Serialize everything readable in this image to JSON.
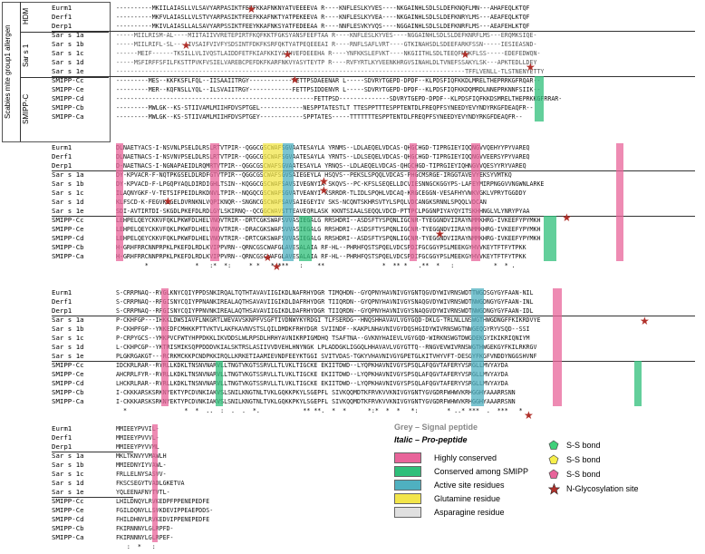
{
  "side_labels": {
    "outer": "Scabies mite group1 allergen",
    "hdm": "HDM",
    "sar": "Sar s 1",
    "smipp": "SMIPP-C"
  },
  "names": [
    "Eurm1",
    "Derf1",
    "Derp1",
    "Sar s 1a",
    "Sar s 1b",
    "Sar s 1c",
    "Sar s 1d",
    "Sar s 1e",
    "SMIPP-Cc",
    "SMIPP-Ce",
    "SMIPP-Cd",
    "SMIPP-Cb",
    "SMIPP-Ca"
  ],
  "blocks": [
    {
      "sequences": [
        "----------MKIILAIASLLVLSAVYARPASIKTFEEFKKAFNKNYATVEEEEVA R----KNFLESLKYVES----NKGAINHLSDLSLDEFKNQFLMN---AHAFEQLKTQF",
        "----------MKFVLAIASLLVLSTVYARPASIKTFEEFKKAFNKTYATPEKEEVA R----KNFLESLKYVEA----NKGAINHLSDLSLDEFKNRYLMS---AEAFEQLKTQF",
        "----------MKIVLAIASLLALSAVYARPSSIKTFEEYKKAFNKSYATFEDEEAA R----NNFLESVKYVQS----NGGAINHLSDLSLDEFKNRFLMS---AEAFEHLKTQF",
        "-----MIILRISM-AL----MIITAIIVVRETEPIRTFKQFKKTFGKSYANSFEEFTAA R----KNFLESLKYVES----NGGAINHLSDLSLDEFKNRFLMS---ERQMKSIQE-",
        "-----MIILRIFL-SL----IVSAIFVIVFYSDSINTFDKFKSRFQKTYATPEQEEEAI R----RNFLSAFLVRT----GTKINAHSDLSDEEFARKFSSN-----IESIEASND-",
        "------MEIF------TKSILLVLIVQSTLAIDDFETFKIAFKKIYATHVEFDEEEHA R----YNFKKSLEFVKT----NKGIITHLSDLTEEQFNQKFLSS-----EDEFEDWQN-",
        "-----MSFIRFFSFILFKSTTPVKFVSIELVAREBCPEFDKFKARFNKVYASYTEYTP R----RVFYRTLKYVEENKHRGVSINAHLDLTVNEFSSAKYLSK---APKTEDLLDEY",
        "-------------------------------------------------------------------------------------------------TFFLVENLL-TLSTNENYETTY",
        "---------MES--KKFKSFLFQL--IISAAIITRGY------------FETTPSDAEENAR L-----SDVRYTGEPD-DPDF--KLPDSFIQFKKDLMRELTHEPRRKGFRQAR--",
        "---------MER--KQFNSLLYQL--ILSVAIITRGY------------FETTPSIDDENVR L-----SDVRYTGEPD-DPDF--KLPDSFIQFKKDQMRDLNNEPRKNNFSIIK--",
        "-------------------------------------------------------FETTPSD--------------SDVRYTGEPD-DPDF--KLPDSFIQFKKDSMRELTHEPRKKGFRRAR-",
        "---------MWLGK--KS-STIIVAMLMIIHFDVSPTGEL------------NESPPTATESTLT TTESPPTTTESPPTENTDLFREQPFSYNEEDYEVYNDYRKGFDEAQFR--",
        "---------MWLGK--KS-STIIVAMLMIIHFDVSPTGEY------------SPPTATES-----TTTTTTTESPPTENTDLFREQPFSYNEEDYEVYNDYRKGFDEAQFR--"
      ],
      "conservation": ""
    },
    {
      "sequences": [
        "DLNAETYACS-I-NSVNLPSELDLRSLRTVTPIR--QGGCGSCWAFSGVAATESAYLA YRNMS--LDLAEQELVDCAS-QHGCHGD-TIPRGIEYIQQNGVVQEHYYPYVAREQ",
        "DLNAETNACS-I-NSVNVPSELDLRSLRTVTPIR--QGGCGSCWAFSGVAATESAYLA YRNTS--LDLSEQELVDCAS-QHGCHGD-TIPRGIEYIQQNGVVEERSYPYVAREQ",
        "D-NAETNACS-I-NGNAPAEIDLRQMRTVTPIR--QGGCGSCWAFSGVAATESAYLA YRNQS--LDLAEQELVDCAS-QHGCHGD-TIPRGIEYIQHNGVVQESYYRYVAREQ",
        "DY-KPVACR-F-NQTPKGSELDLRDFGTVTPIR--QGGCGSCWAFSGVSAIEGEYLA HSQVS--PEKSLSPQQLVDCAS-PHGCMSRGE-IRGGTAVEVYEKSYVMTKQ",
        "DY-KPVACD-F-LPGQPYAQLDIRDIGHLTSIN--KQGGCGSCWAFSAVSIVEGNYIA SKQVS--PC-KFSLSEQELLDCVIESNNGCKGGYPS-LAFEYMIRPNGGVVNGWNLARKE",
        "ILAQNYGKF-V-TETSIFPEIDLRKDNVLTPIR--NQGQCGSCWAFSGVATVEANYI KSRRDR-TLIDLSPQHLVDCAQ-KRGCEGGN-VESAFHYVWKVGKLVPRYTGGDDY",
        "KLFSCD-K-FEGVKLGELDVRNKNLVQPIKNQR--SNGNCGSCWAFSAVSAIEGEYIV SKS-NCQNTSKHRSVTYLSPQLVDCANGKSRNNLSPQQLVDCAN",
        "SDI-AVTIRTDI-SKGDLPKEFDLRDLGYLSKIRNQ--QCGGCWAVSTTEAVEQRLASK KKNTSIAALSEQQLVDCD-PTTPCLPGGNPIYAYQYITSKHHNGLVLYNRYPYAA",
        "LEHPELQEYCKKVFQKLPKWFDLHELVNQVTRIR--DRTCGKSWAFSVVASIEGALG RRSHDRI--ASDSFTYSPQNLIGCNR-TYEGGNDVIIRAYNMMKHRG-IVKEEFYPYMKH",
        "LEHPELQEYCKKVFQKLPKWFDLHELVNQVTRIR--DRACGKSWAFSVVASIEGALG RRSHDRI--ASDSFTYSPQNLIGCNR-TYEGGNDVIIRAYNMMKHRG-IVKEEFYPYMKH",
        "LEHPELQEYCKKVFQKLPKWFDLHELVNQVTRIR--DRTCGKSWAFSVVASIEGALG RRSHDRI--ASDSFTYSPQNLIGCNR-TYEGGNDVIIRAYNMMKHRG-IVKEEFYPYMKH",
        "H-GRHFRRCNNPRPKLPKEFDLRDLKVIPPVRN--QRNCGSCWAFGLAVESALAIA RF-HL--PHRHFQSTSPQELVDCSPDIFGCGGYPSLMEEKGYHVVKEYTFTFYTPKK",
        "H-GRHFRRCNNPRPKLPKEFDLRDLKVIPPVRN--QRNCGSCWAFGLAVESALAIA RF-HL--PHRHFQSTSPQELVDCSPDIFGCGGYPSLMEEKGYHVVKEYTFTFYTPKK"
      ],
      "conservation": "        *             *   :*  *:     * *   *:***   :    **                *  ** *   .**  *   :           *  * ."
    },
    {
      "sequences": [
        "S-CRRPNAQ--RYGLKNYCQIYPPDSNKIRQALTQTHTAVAVIIGIKDLNAFRHYDGR TIMQHDN--GYQPNYHAVNIVGYGNTQGVDYWIVRNSWDTTWGDSGYGYFAAN-NIL",
        "S-CRRPNAQ--RFGISNYCQIYPPNANKIREALAQTHSAVAVIIGIKDLDAFRHYDGR TIIQRDN--GYQPNYHAVNIVGYSNAQGVDYWIVRNSWDTNWGDNGYGYFAAN-INL",
        "S-CRRPNAQ--RFGISNYCQIYPPNVNKIREALAQTHSAVAVIIGIKDLDAFRHYDGR TIIQRDN--GYQPNYHAVNIVGYSNAQGVDYWIVRNSWDTNWGDNGYGYFAAN-IDL",
        "P-CKHFGP---IHKKLDWSIAVFLNKGRTLWEVAVSKNPFVSGFTIVDNWYKYRDGI TLFSERDG--HNQSHHAVAVLVGYGQD-DKLG-TRLNLLNSWGTHWGDNGFFKIKRDVYE",
        "P-CKHPFGP--YNKEDFCMHKKPTTVKTVLAKFKAVNVSTSLQILDMDKFRHYDGR SVIINDF--KAKPLNHAVNIVGYDQSHGIDYWIVRNSWGTNWGEQGYRYVSQD--SSI",
        "P-CRPYGCS--YMKPVCFWTYHPPDKKLIKVDDSLWLRPSDLHRHYAVNIKRPIGMDHQ TSAFTNA--GVKNYHAIEVLVGYGQD-WIRKNSWGTDWGDEKGYIKIKRIQNIYM",
        "L-CKHPCGP--YKTRISMIKSQPPDDDVKIALSKTRSLASIIVVDVEHLHNYNGK LPLADDGKLIGGQLHHAVAVLVGYGTTQ--RNGVEVWIVRNSWGTHWGEKGYFKILRKRGV",
        "PLGKRGAKGT---RCRKMCKKPCNDPKKIRQLLKRKETIAAMIEVNDFEEYKTGGI SVITVDAS-TGKYVHAVNIVGYGPETGLKITVHYVFT-DESGYFKGFVNDDYNGGSHVNF",
        "IDCKRLRAR--RYRLLKDKLTNSNVNARVLLTNGTVKGTSSRVLLTLVKLTIGCKE EKIITDWD--LYQPKHAVNIVGYSPSQLAFQGVTAFERYVSRGLLMVYAYDA",
        "AHCRRLFYR--RYRLLKDKLTNSNVNARVLLTNGTVKGTSSRVLLTLVKLTIGCKE EKIITDWD--LYQPKHAVNIVGYSPSQLAFQGVTAFERYVSRGLLMVYAYDA",
        "LHCKRLRAR--RYRLLKDKLTNSNVNARVLLTNGTVKGTSSRVLLTLVKLTIGCKE EKIITDWD--LYQPKHAVNIVGYSPSQLAFQGVTAFERYVSRGLLMVYAYDA",
        "I-CKKKARSKSRKNYEKTYPCDVNKIAKVSLSNILKNGTNLTVKLGQKKPKYLSGEPFL SIVKQQMDTKFRVKVVKNIVGYGNTYGVGDRFWHWVKRHGGHYAAARRSNN",
        "I-CKKKARSKSRKNYEKTYPCDVNKIAKVSLSNILKNGTNLTVKLGQKKPKYLSGEPFL SIVKQQMDTKFRVKVVKNIVGYGNTYGVGDRFWHWVKRHGGHYAAARRSNN"
      ],
      "conservation": "  *                *  *  ..  :  .  .  *.            ** **.  *  *      *:*  *  *   *:        * ..* ***  .  ***   *"
    },
    {
      "sequences": [
        "MMIEEYPVVIL-",
        "MMIEEYPVVVL-",
        "MMIEEYPYVVML",
        "MKLTKNVYVMAWLH",
        "MMIEDNYIYVAWL-",
        "FRLLELNYSASVV-",
        "FKSCSEGYTVADLGKETVA",
        "YQLEENAFNYTVTL-",
        "LHILDNQYLRVKEDPFPPENEPEDFE",
        "FGILDQNYLLSVKDEVIPPEAEPDDS-",
        "FHILDHNYLRVKEDVIPPENEPEDFE",
        "FKIRNNNYLGLRPFD-",
        "FKIRNNNYLGLRPEF-"
      ],
      "conservation": "   :  *   :"
    }
  ],
  "legend": {
    "grey_note": "Grey – Signal peptide",
    "italic_note": "Italic – Pro-peptide",
    "items": [
      {
        "label": "Highly conserved",
        "color": "#e8649a"
      },
      {
        "label": "Conserved among SMIPP",
        "color": "#2fbf7a"
      },
      {
        "label": "Active site residues",
        "color": "#4fb0c0"
      },
      {
        "label": "Glutamine residue",
        "color": "#f2e54a"
      },
      {
        "label": "Asparagine residue",
        "color": "#e0e0e0"
      }
    ],
    "symbols": [
      {
        "label": "S-S bond",
        "color": "#3fd07a",
        "shape": "pentagon"
      },
      {
        "label": "S-S bond",
        "color": "#f7ef4a",
        "shape": "pentagon"
      },
      {
        "label": "S-S bond",
        "color": "#e8649a",
        "shape": "pentagon"
      },
      {
        "label": "N-Glycosylation site",
        "color": "#b0302a",
        "shape": "star"
      }
    ]
  }
}
